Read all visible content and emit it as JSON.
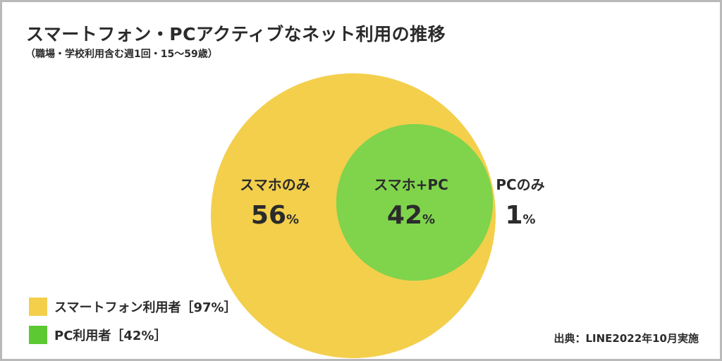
{
  "title": "スマートフォン・PCアクティブなネット利用の推移",
  "subtitle": "（職場・学校利用含む週1回・15～59歳）",
  "source": "出典：LINE2022年10月実施",
  "colors": {
    "smartphone": "#f3cf4c",
    "pc": "#5cc832",
    "overlap": "#7fd44c",
    "text": "#2b2b2b"
  },
  "chart_data": {
    "type": "venn",
    "sets": [
      {
        "name": "スマートフォン利用者",
        "value": 97,
        "legend_label": "スマートフォン利用者［97%］"
      },
      {
        "name": "PC利用者",
        "value": 42,
        "legend_label": "PC利用者［42%］"
      }
    ],
    "regions": [
      {
        "label": "スマホのみ",
        "value": "56",
        "unit": "%"
      },
      {
        "label": "スマホ+PC",
        "value": "42",
        "unit": "%"
      },
      {
        "label": "PCのみ",
        "value": "1",
        "unit": "%"
      }
    ]
  }
}
